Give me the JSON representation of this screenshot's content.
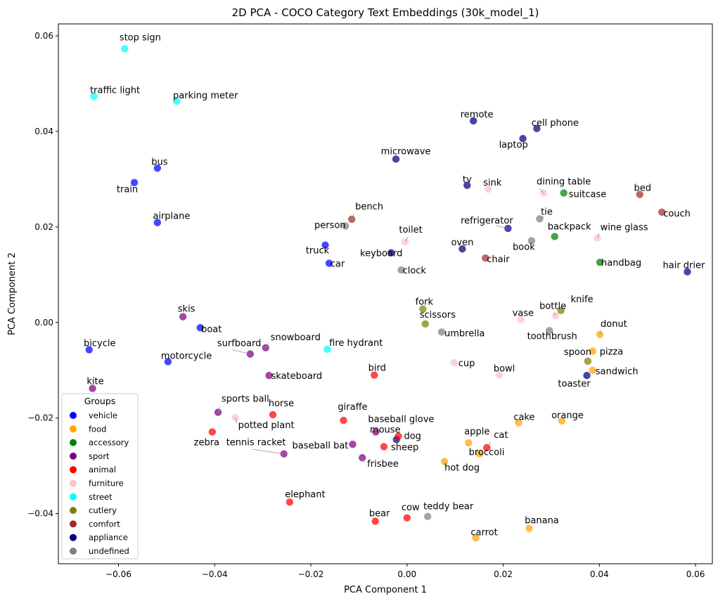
{
  "chart_data": {
    "type": "scatter",
    "title": "2D PCA - COCO Category Text Embeddings (30k_model_1)",
    "xlabel": "PCA Component 1",
    "ylabel": "PCA Component 2",
    "xlim": [
      -0.0725,
      0.0635
    ],
    "ylim": [
      -0.0505,
      0.0625
    ],
    "xticks": [
      -0.06,
      -0.04,
      -0.02,
      0.0,
      0.02,
      0.04,
      0.06
    ],
    "xtick_labels": [
      "−0.06",
      "−0.04",
      "−0.02",
      "0.00",
      "0.02",
      "0.04",
      "0.06"
    ],
    "yticks": [
      -0.04,
      -0.02,
      0.0,
      0.02,
      0.04,
      0.06
    ],
    "ytick_labels": [
      "−0.04",
      "−0.02",
      "0.00",
      "0.02",
      "0.04",
      "0.06"
    ],
    "grid": false,
    "legend": {
      "title": "Groups",
      "position": "lower-left",
      "entries": [
        {
          "name": "vehicle",
          "color": "#0000ff"
        },
        {
          "name": "food",
          "color": "#ffa500"
        },
        {
          "name": "accessory",
          "color": "#008000"
        },
        {
          "name": "sport",
          "color": "#800080"
        },
        {
          "name": "animal",
          "color": "#ff0000"
        },
        {
          "name": "furniture",
          "color": "#ffc0cb"
        },
        {
          "name": "street",
          "color": "#00ffff"
        },
        {
          "name": "cutlery",
          "color": "#808000"
        },
        {
          "name": "comfort",
          "color": "#a52a2a"
        },
        {
          "name": "appliance",
          "color": "#000080"
        },
        {
          "name": "undefined",
          "color": "#808080"
        }
      ]
    },
    "points": [
      {
        "label": "stop sign",
        "group": "street",
        "x": -0.0587,
        "y": 0.0573
      },
      {
        "label": "traffic light",
        "group": "street",
        "x": -0.0651,
        "y": 0.0473
      },
      {
        "label": "parking meter",
        "group": "street",
        "x": -0.0479,
        "y": 0.0463
      },
      {
        "label": "fire hydrant",
        "group": "street",
        "x": -0.0166,
        "y": -0.0056
      },
      {
        "label": "bus",
        "group": "vehicle",
        "x": -0.0519,
        "y": 0.0323
      },
      {
        "label": "train",
        "group": "vehicle",
        "x": -0.0567,
        "y": 0.0293
      },
      {
        "label": "airplane",
        "group": "vehicle",
        "x": -0.0519,
        "y": 0.0209
      },
      {
        "label": "truck",
        "group": "vehicle",
        "x": -0.017,
        "y": 0.0162
      },
      {
        "label": "car",
        "group": "vehicle",
        "x": -0.0162,
        "y": 0.0124
      },
      {
        "label": "boat",
        "group": "vehicle",
        "x": -0.043,
        "y": -0.0011
      },
      {
        "label": "bicycle",
        "group": "vehicle",
        "x": -0.0661,
        "y": -0.0057
      },
      {
        "label": "motorcycle",
        "group": "vehicle",
        "x": -0.0497,
        "y": -0.0082
      },
      {
        "label": "remote",
        "group": "appliance",
        "x": 0.0138,
        "y": 0.0422
      },
      {
        "label": "cell phone",
        "group": "appliance",
        "x": 0.027,
        "y": 0.0406
      },
      {
        "label": "laptop",
        "group": "appliance",
        "x": 0.0241,
        "y": 0.0385
      },
      {
        "label": "microwave",
        "group": "appliance",
        "x": -0.0023,
        "y": 0.0342
      },
      {
        "label": "tv",
        "group": "appliance",
        "x": 0.0125,
        "y": 0.0287
      },
      {
        "label": "refrigerator",
        "group": "appliance",
        "x": 0.021,
        "y": 0.0197
      },
      {
        "label": "oven",
        "group": "appliance",
        "x": 0.0115,
        "y": 0.0154
      },
      {
        "label": "keyboard",
        "group": "appliance",
        "x": -0.0033,
        "y": 0.0146
      },
      {
        "label": "hair drier",
        "group": "appliance",
        "x": 0.0583,
        "y": 0.0106
      },
      {
        "label": "toaster",
        "group": "appliance",
        "x": 0.0374,
        "y": -0.0111
      },
      {
        "label": "mouse",
        "group": "appliance",
        "x": -0.0022,
        "y": -0.0245
      },
      {
        "label": "sink",
        "group": "furniture",
        "x": 0.0169,
        "y": 0.0279
      },
      {
        "label": "dining table",
        "group": "furniture",
        "x": 0.0284,
        "y": 0.0271
      },
      {
        "label": "toilet",
        "group": "furniture",
        "x": -0.0004,
        "y": 0.0169
      },
      {
        "label": "wine glass",
        "group": "furniture",
        "x": 0.0396,
        "y": 0.0177
      },
      {
        "label": "vase",
        "group": "furniture",
        "x": 0.0237,
        "y": 0.0006
      },
      {
        "label": "bottle",
        "group": "furniture",
        "x": 0.0309,
        "y": 0.0014
      },
      {
        "label": "cup",
        "group": "furniture",
        "x": 0.0098,
        "y": -0.0084
      },
      {
        "label": "bowl",
        "group": "furniture",
        "x": 0.0192,
        "y": -0.011
      },
      {
        "label": "potted plant",
        "group": "furniture",
        "x": -0.0357,
        "y": -0.0199
      },
      {
        "label": "suitcase",
        "group": "accessory",
        "x": 0.0326,
        "y": 0.0271
      },
      {
        "label": "backpack",
        "group": "accessory",
        "x": 0.0307,
        "y": 0.018
      },
      {
        "label": "handbag",
        "group": "accessory",
        "x": 0.0401,
        "y": 0.0126
      },
      {
        "label": "bed",
        "group": "comfort",
        "x": 0.0484,
        "y": 0.0268
      },
      {
        "label": "couch",
        "group": "comfort",
        "x": 0.053,
        "y": 0.0231
      },
      {
        "label": "bench",
        "group": "comfort",
        "x": -0.0115,
        "y": 0.0216
      },
      {
        "label": "chair",
        "group": "comfort",
        "x": 0.0163,
        "y": 0.0135
      },
      {
        "label": "person",
        "group": "undefined",
        "x": -0.0128,
        "y": 0.0202
      },
      {
        "label": "tie",
        "group": "undefined",
        "x": 0.0276,
        "y": 0.0217
      },
      {
        "label": "book",
        "group": "undefined",
        "x": 0.0259,
        "y": 0.0171
      },
      {
        "label": "clock",
        "group": "undefined",
        "x": -0.0012,
        "y": 0.011
      },
      {
        "label": "umbrella",
        "group": "undefined",
        "x": 0.0072,
        "y": -0.002
      },
      {
        "label": "toothbrush",
        "group": "undefined",
        "x": 0.0296,
        "y": -0.0017
      },
      {
        "label": "teddy bear",
        "group": "undefined",
        "x": 0.0043,
        "y": -0.0406
      },
      {
        "label": "fork",
        "group": "cutlery",
        "x": 0.0033,
        "y": 0.0028
      },
      {
        "label": "scissors",
        "group": "cutlery",
        "x": 0.0038,
        "y": -0.0003
      },
      {
        "label": "knife",
        "group": "cutlery",
        "x": 0.032,
        "y": 0.0025
      },
      {
        "label": "spoon",
        "group": "cutlery",
        "x": 0.0376,
        "y": -0.0081
      },
      {
        "label": "donut",
        "group": "food",
        "x": 0.0401,
        "y": -0.0025
      },
      {
        "label": "pizza",
        "group": "food",
        "x": 0.0386,
        "y": -0.006
      },
      {
        "label": "sandwich",
        "group": "food",
        "x": 0.0386,
        "y": -0.01
      },
      {
        "label": "cake",
        "group": "food",
        "x": 0.0232,
        "y": -0.021
      },
      {
        "label": "orange",
        "group": "food",
        "x": 0.0322,
        "y": -0.0206
      },
      {
        "label": "apple",
        "group": "food",
        "x": 0.0128,
        "y": -0.0252
      },
      {
        "label": "broccoli",
        "group": "food",
        "x": 0.0151,
        "y": -0.0275
      },
      {
        "label": "hot dog",
        "group": "food",
        "x": 0.0078,
        "y": -0.0291
      },
      {
        "label": "banana",
        "group": "food",
        "x": 0.0254,
        "y": -0.0431
      },
      {
        "label": "carrot",
        "group": "food",
        "x": 0.0143,
        "y": -0.0451
      },
      {
        "label": "skis",
        "group": "sport",
        "x": -0.0466,
        "y": 0.0012
      },
      {
        "label": "surfboard",
        "group": "sport",
        "x": -0.0326,
        "y": -0.0066
      },
      {
        "label": "snowboard",
        "group": "sport",
        "x": -0.0294,
        "y": -0.0053
      },
      {
        "label": "skateboard",
        "group": "sport",
        "x": -0.0287,
        "y": -0.0111
      },
      {
        "label": "kite",
        "group": "sport",
        "x": -0.0654,
        "y": -0.0138
      },
      {
        "label": "sports ball",
        "group": "sport",
        "x": -0.0393,
        "y": -0.0188
      },
      {
        "label": "tennis racket",
        "group": "sport",
        "x": -0.0256,
        "y": -0.0275
      },
      {
        "label": "baseball glove",
        "group": "sport",
        "x": -0.0065,
        "y": -0.0229
      },
      {
        "label": "baseball bat",
        "group": "sport",
        "x": -0.0113,
        "y": -0.0255
      },
      {
        "label": "frisbee",
        "group": "sport",
        "x": -0.0093,
        "y": -0.0283
      },
      {
        "label": "bird",
        "group": "animal",
        "x": -0.0068,
        "y": -0.011
      },
      {
        "label": "horse",
        "group": "animal",
        "x": -0.0279,
        "y": -0.0193
      },
      {
        "label": "zebra",
        "group": "animal",
        "x": -0.0405,
        "y": -0.0229
      },
      {
        "label": "giraffe",
        "group": "animal",
        "x": -0.0132,
        "y": -0.0205
      },
      {
        "label": "dog",
        "group": "animal",
        "x": -0.0018,
        "y": -0.0238
      },
      {
        "label": "sheep",
        "group": "animal",
        "x": -0.0048,
        "y": -0.026
      },
      {
        "label": "cat",
        "group": "animal",
        "x": 0.0166,
        "y": -0.0262
      },
      {
        "label": "elephant",
        "group": "animal",
        "x": -0.0244,
        "y": -0.0376
      },
      {
        "label": "bear",
        "group": "animal",
        "x": -0.0066,
        "y": -0.0416
      },
      {
        "label": "cow",
        "group": "animal",
        "x": 0.0,
        "y": -0.0409
      }
    ]
  }
}
